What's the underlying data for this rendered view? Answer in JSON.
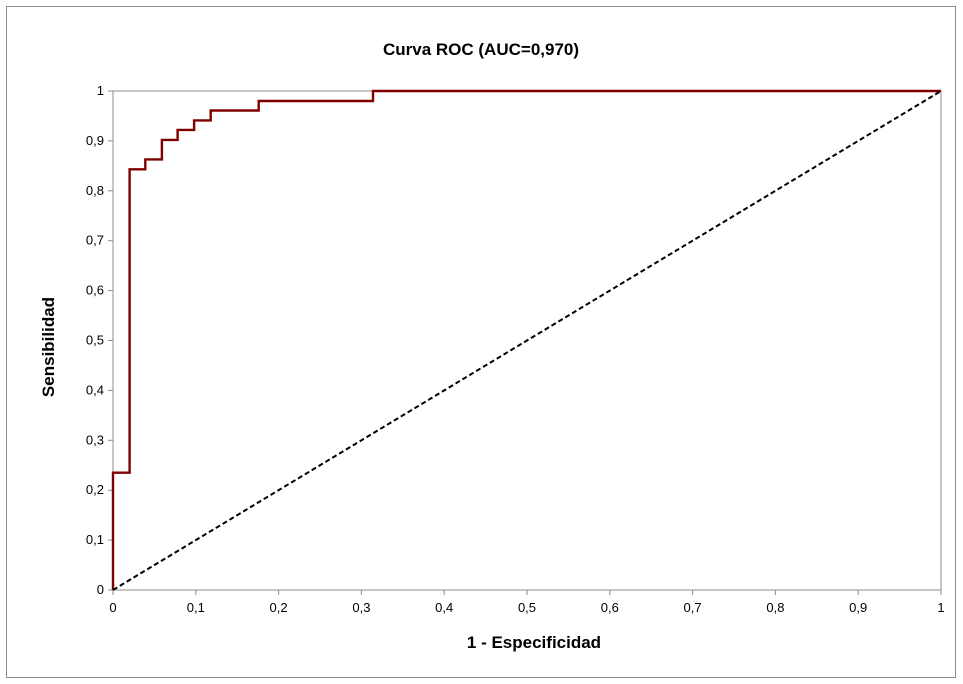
{
  "chart_data": {
    "type": "line",
    "title": "Curva ROC (AUC=0,970)",
    "xlabel": "1 - Especificidad",
    "ylabel": "Sensibilidad",
    "xlim": [
      0,
      1
    ],
    "ylim": [
      0,
      1
    ],
    "x_ticks": [
      "0",
      "0,1",
      "0,2",
      "0,3",
      "0,4",
      "0,5",
      "0,6",
      "0,7",
      "0,8",
      "0,9",
      "1"
    ],
    "y_ticks": [
      "0",
      "0,1",
      "0,2",
      "0,3",
      "0,4",
      "0,5",
      "0,6",
      "0,7",
      "0,8",
      "0,9",
      "1"
    ],
    "grid": false,
    "legend": "none",
    "series": [
      {
        "color": "#7f0000",
        "style": "solid",
        "x": [
          0,
          0,
          0.02,
          0.02,
          0.039,
          0.039,
          0.059,
          0.059,
          0.078,
          0.078,
          0.098,
          0.098,
          0.118,
          0.118,
          0.176,
          0.176,
          0.314,
          0.314,
          1
        ],
        "y": [
          0,
          0.235,
          0.235,
          0.843,
          0.843,
          0.863,
          0.863,
          0.902,
          0.902,
          0.922,
          0.922,
          0.941,
          0.941,
          0.961,
          0.961,
          0.98,
          0.98,
          1,
          1
        ]
      },
      {
        "color": "#000000",
        "style": "dashed",
        "x": [
          0,
          1
        ],
        "y": [
          0,
          1
        ]
      }
    ]
  }
}
